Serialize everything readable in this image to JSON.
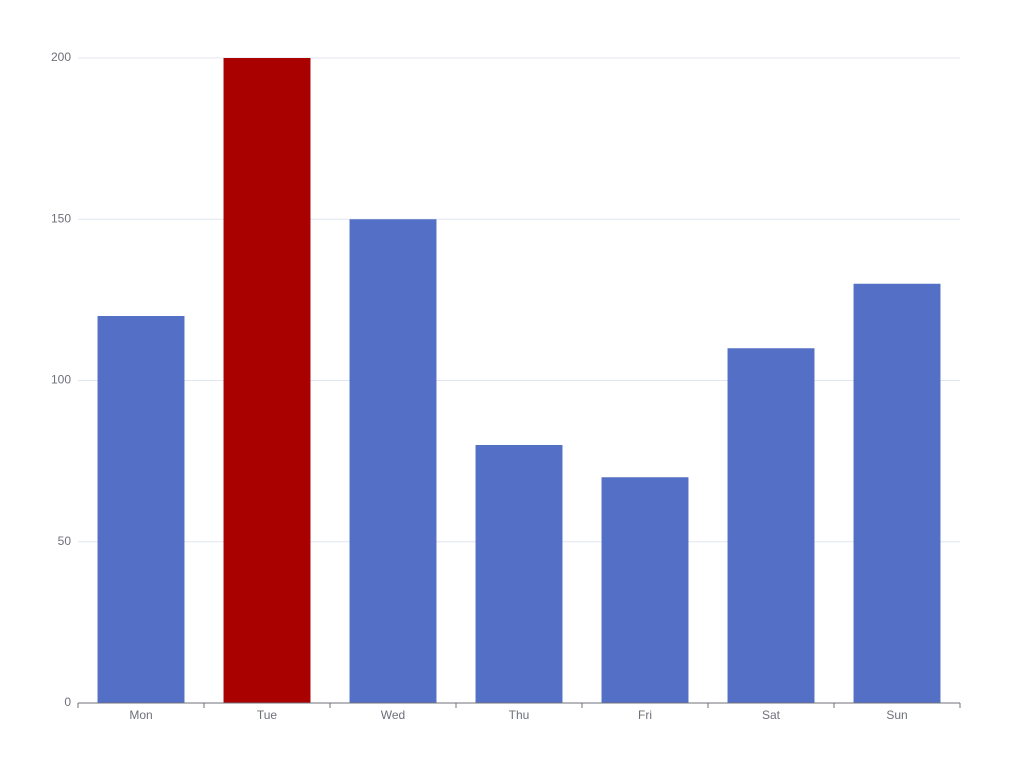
{
  "chart_data": {
    "type": "bar",
    "categories": [
      "Mon",
      "Tue",
      "Wed",
      "Thu",
      "Fri",
      "Sat",
      "Sun"
    ],
    "values": [
      120,
      200,
      150,
      80,
      70,
      110,
      130
    ],
    "colors": [
      "#5470c6",
      "#a90000",
      "#5470c6",
      "#5470c6",
      "#5470c6",
      "#5470c6",
      "#5470c6"
    ],
    "ylim": [
      0,
      200
    ],
    "yticks": [
      0,
      50,
      100,
      150,
      200
    ],
    "grid": true
  }
}
